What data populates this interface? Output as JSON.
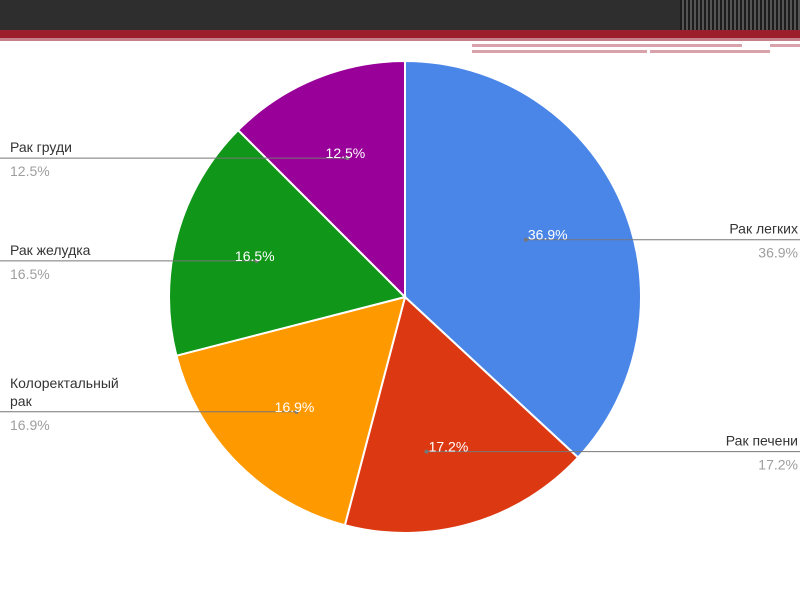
{
  "chart_data": {
    "type": "pie",
    "title": "",
    "legend": "labels-outside",
    "slices": [
      {
        "label": "Рак легких",
        "label_lines": [
          "Рак легких"
        ],
        "value": 36.9,
        "display": "36.9%",
        "color": "#4a86e8",
        "side": "right"
      },
      {
        "label": "Рак печени",
        "label_lines": [
          "Рак печени"
        ],
        "value": 17.2,
        "display": "17.2%",
        "color": "#dc3912",
        "side": "right"
      },
      {
        "label": "Колоректальный рак",
        "label_lines": [
          "Колоректальный",
          "рак"
        ],
        "value": 16.9,
        "display": "16.9%",
        "color": "#ff9900",
        "side": "left"
      },
      {
        "label": "Рак желудка",
        "label_lines": [
          "Рак желудка"
        ],
        "value": 16.5,
        "display": "16.5%",
        "color": "#109618",
        "side": "left"
      },
      {
        "label": "Рак груди",
        "label_lines": [
          "Рак груди"
        ],
        "value": 12.5,
        "display": "12.5%",
        "color": "#990099",
        "side": "left"
      }
    ]
  }
}
